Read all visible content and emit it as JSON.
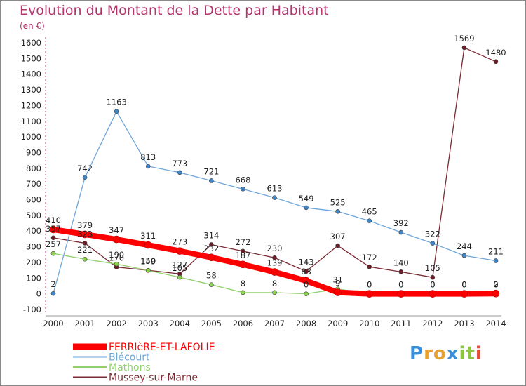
{
  "title": "Evolution du Montant de la Dette par Habitant",
  "subtitle": "(en €)",
  "logo_text": "Proxiti",
  "chart_data": {
    "type": "line",
    "x": [
      "2000",
      "2001",
      "2002",
      "2003",
      "2004",
      "2005",
      "2006",
      "2007",
      "2008",
      "2009",
      "2010",
      "2011",
      "2012",
      "2013",
      "2014"
    ],
    "ylim": [
      -100,
      1600
    ],
    "yticks": [
      "-100",
      "0",
      "100",
      "200",
      "300",
      "400",
      "500",
      "600",
      "700",
      "800",
      "900",
      "1000",
      "1100",
      "1200",
      "1300",
      "1400",
      "1500",
      "1600"
    ],
    "grid": false,
    "legend_position": "bottom-left",
    "series": [
      {
        "name": "FERRIèRE-ET-LAFOLIE",
        "color": "#ff0000",
        "marker": "#ff0000",
        "width": 8,
        "values": [
          410,
          379,
          347,
          311,
          273,
          232,
          187,
          139,
          83,
          9,
          0,
          0,
          0,
          0,
          2
        ],
        "labels": [
          "410",
          "379",
          "347",
          "311",
          "273",
          "232",
          "187",
          "139",
          "83",
          "9",
          "0",
          "0",
          "0",
          "0",
          "2"
        ]
      },
      {
        "name": "Blécourt",
        "color": "#6fa6d9",
        "marker": "#3f86c8",
        "width": 1.3,
        "values": [
          2,
          742,
          1163,
          813,
          773,
          721,
          668,
          613,
          549,
          525,
          465,
          392,
          322,
          244,
          211
        ],
        "labels": [
          "2",
          "742",
          "1163",
          "813",
          "773",
          "721",
          "668",
          "613",
          "549",
          "525",
          "465",
          "392",
          "322",
          "244",
          "211"
        ]
      },
      {
        "name": "Mathons",
        "color": "#8fd16a",
        "marker": "#8cd44c",
        "width": 1.3,
        "values": [
          257,
          221,
          190,
          149,
          105,
          58,
          8,
          8,
          0,
          31,
          0,
          0,
          0,
          0,
          0
        ],
        "labels": [
          "257",
          "221",
          "190",
          "149",
          "105",
          "58",
          "8",
          "8",
          "0",
          "31",
          "0",
          "0",
          "0",
          "0",
          "0"
        ]
      },
      {
        "name": "Mussey-sur-Marne",
        "color": "#7a2a34",
        "marker": "#6b1c26",
        "width": 1.3,
        "values": [
          357,
          323,
          170,
          150,
          127,
          314,
          272,
          230,
          143,
          307,
          172,
          140,
          105,
          1569,
          1480
        ],
        "labels": [
          "357",
          "323",
          "170",
          "150",
          "127",
          "314",
          "272",
          "230",
          "143",
          "307",
          "172",
          "140",
          "105",
          "1569",
          "1480"
        ]
      }
    ]
  }
}
